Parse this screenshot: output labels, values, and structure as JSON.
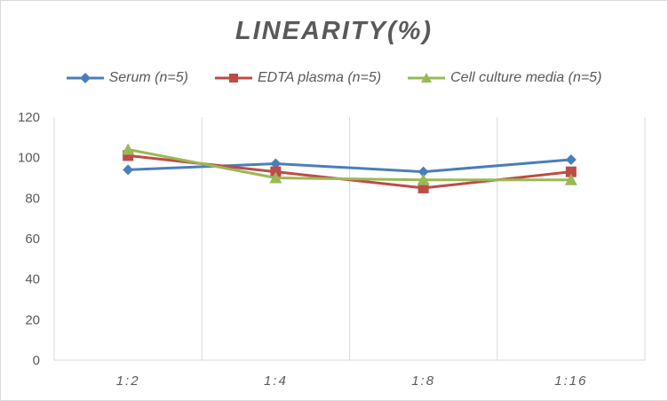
{
  "chart_data": {
    "type": "line",
    "title": "LINEARITY(%)",
    "categories": [
      "1:2",
      "1:4",
      "1:8",
      "1:16"
    ],
    "ylim": [
      0,
      120
    ],
    "yticks": [
      0,
      20,
      40,
      60,
      80,
      100,
      120
    ],
    "grid": "vertical",
    "legend_position": "top",
    "series": [
      {
        "name": "Serum (n=5)",
        "values": [
          94,
          97,
          93,
          99
        ],
        "color": "#4a7ebb",
        "marker": "diamond"
      },
      {
        "name": "EDTA plasma (n=5)",
        "values": [
          101,
          93,
          85,
          93
        ],
        "color": "#be4b48",
        "marker": "square"
      },
      {
        "name": "Cell culture media (n=5)",
        "values": [
          104,
          90,
          89,
          89
        ],
        "color": "#98b954",
        "marker": "triangle"
      }
    ]
  }
}
